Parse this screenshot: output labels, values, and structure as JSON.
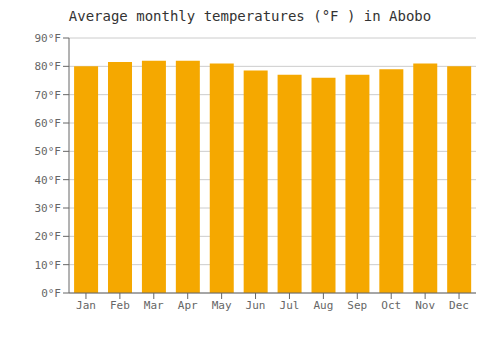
{
  "chart_data": {
    "type": "bar",
    "title": "Average monthly temperatures (°F ) in Abobo",
    "categories": [
      "Jan",
      "Feb",
      "Mar",
      "Apr",
      "May",
      "Jun",
      "Jul",
      "Aug",
      "Sep",
      "Oct",
      "Nov",
      "Dec"
    ],
    "values": [
      80.0,
      81.5,
      82.0,
      82.0,
      81.0,
      78.5,
      77.0,
      76.0,
      77.0,
      79.0,
      81.0,
      80.0
    ],
    "color": "#F5A800",
    "ylim": [
      0,
      90
    ],
    "yticks": [
      {
        "value": 0,
        "label": "0°F"
      },
      {
        "value": 10,
        "label": "10°F"
      },
      {
        "value": 20,
        "label": "20°F"
      },
      {
        "value": 30,
        "label": "30°F"
      },
      {
        "value": 40,
        "label": "40°F"
      },
      {
        "value": 50,
        "label": "50°F"
      },
      {
        "value": 60,
        "label": "60°F"
      },
      {
        "value": 70,
        "label": "70°F"
      },
      {
        "value": 80,
        "label": "80°F"
      },
      {
        "value": 90,
        "label": "90°F"
      }
    ],
    "grid": true
  }
}
